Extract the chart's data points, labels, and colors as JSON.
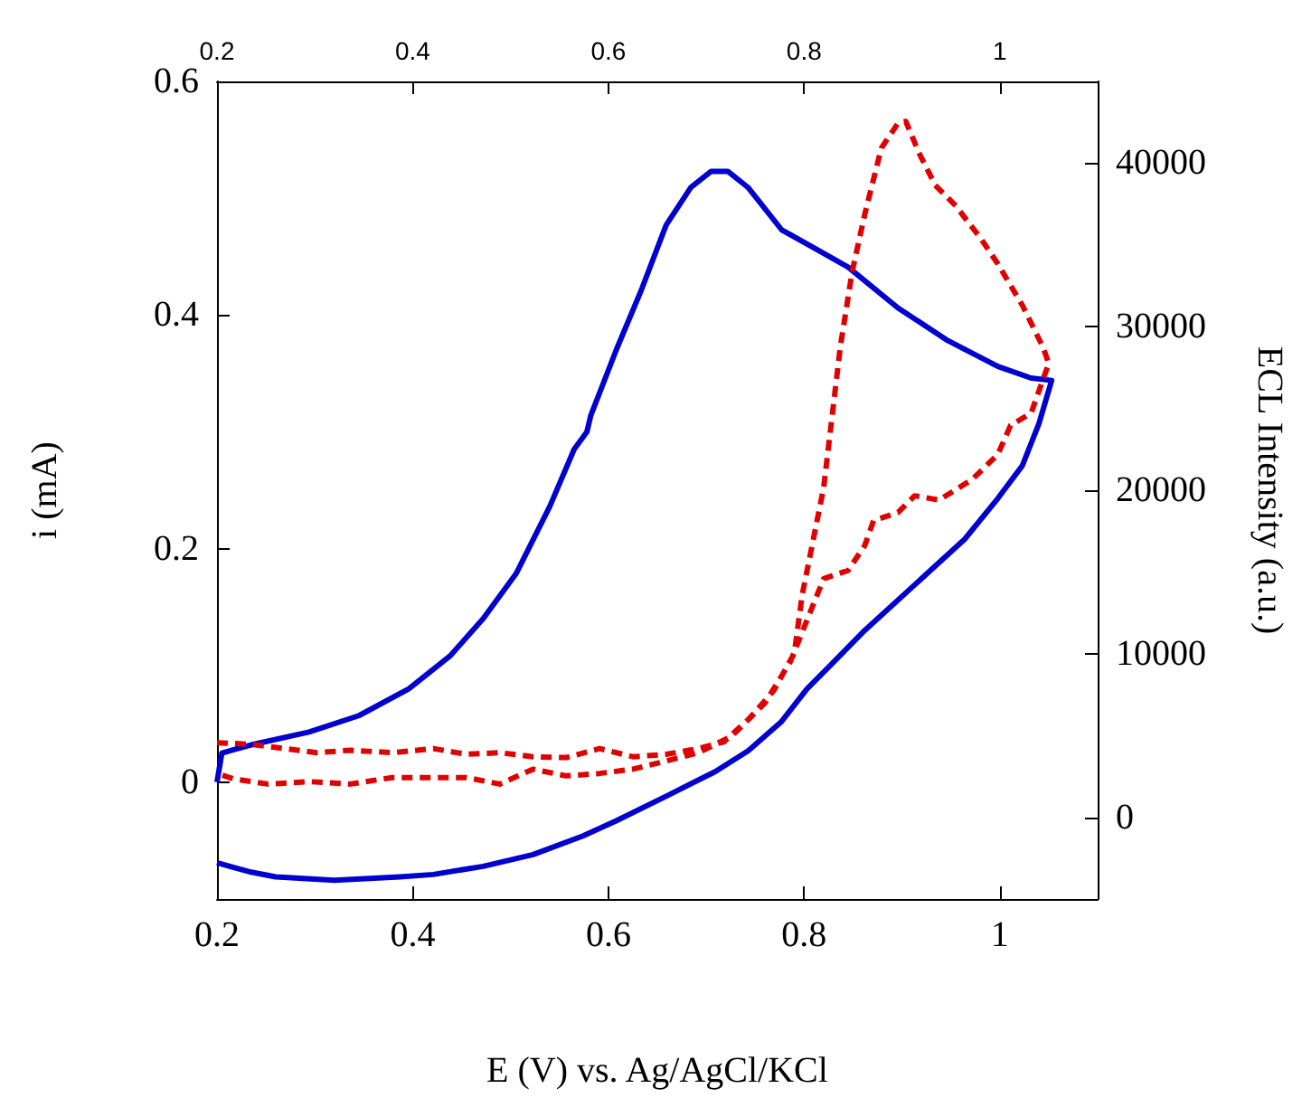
{
  "chart_data": {
    "type": "line",
    "xlabel": "E (V) vs. Ag/AgCl/KCl",
    "ylabel": "i (mA)",
    "y2label": "ECL Intensity (a.u.)",
    "xlim": [
      0.2,
      1.1
    ],
    "xticks": [
      0.2,
      0.4,
      0.6,
      0.8,
      1
    ],
    "x2lim": [
      0.2,
      1.1
    ],
    "x2ticks": [
      0.2,
      0.4,
      0.6,
      0.8,
      1
    ],
    "ylim": [
      -0.1,
      0.6
    ],
    "yticks": [
      0,
      0.2,
      0.4,
      0.6
    ],
    "y2lim": [
      -5000,
      45000
    ],
    "y2ticks": [
      0,
      10000,
      20000,
      30000,
      40000
    ],
    "grid": false,
    "marker": "none",
    "series": [
      {
        "color": "#0000d0",
        "line_style": "solid",
        "x": [
          0.2,
          0.205,
          0.235,
          0.294,
          0.345,
          0.396,
          0.438,
          0.472,
          0.506,
          0.54,
          0.565,
          0.578,
          0.582,
          0.608,
          0.633,
          0.659,
          0.684,
          0.705,
          0.722,
          0.743,
          0.777,
          0.811,
          0.845,
          0.896,
          0.947,
          0.998,
          1.032,
          1.053,
          1.04,
          1.023,
          0.998,
          0.964,
          0.913,
          0.862,
          0.828,
          0.803,
          0.777,
          0.743,
          0.709,
          0.659,
          0.608,
          0.574,
          0.523,
          0.472,
          0.421,
          0.387,
          0.32,
          0.26,
          0.235,
          0.2
        ],
        "values": [
          0,
          0.025,
          0.032,
          0.043,
          0.057,
          0.08,
          0.108,
          0.14,
          0.179,
          0.236,
          0.285,
          0.3,
          0.314,
          0.37,
          0.42,
          0.477,
          0.509,
          0.523,
          0.523,
          0.509,
          0.473,
          0.457,
          0.441,
          0.406,
          0.378,
          0.356,
          0.346,
          0.344,
          0.307,
          0.271,
          0.243,
          0.208,
          0.169,
          0.13,
          0.101,
          0.08,
          0.052,
          0.027,
          0.009,
          -0.012,
          -0.033,
          -0.046,
          -0.062,
          -0.072,
          -0.079,
          -0.081,
          -0.084,
          -0.081,
          -0.077,
          -0.069
        ]
      },
      {
        "color": "#e00000",
        "line_style": "dashed",
        "axis": "y2",
        "x": [
          0.2,
          0.235,
          0.269,
          0.302,
          0.336,
          0.379,
          0.421,
          0.455,
          0.489,
          0.523,
          0.557,
          0.591,
          0.625,
          0.659,
          0.692,
          0.718,
          0.743,
          0.769,
          0.79,
          0.798,
          0.82,
          0.837,
          0.849,
          0.862,
          0.879,
          0.896,
          0.904,
          0.917,
          0.934,
          0.955,
          0.981,
          0.998,
          1.023,
          1.044,
          1.05,
          1.032,
          1.011,
          0.998,
          0.972,
          0.938,
          0.913,
          0.896,
          0.871,
          0.862,
          0.845,
          0.82,
          0.803,
          0.786,
          0.76,
          0.726,
          0.692,
          0.659,
          0.625,
          0.591,
          0.557,
          0.523,
          0.489,
          0.455,
          0.421,
          0.379,
          0.336,
          0.294,
          0.252,
          0.218,
          0.2
        ],
        "values": [
          4560,
          4460,
          4200,
          3950,
          4100,
          3950,
          4200,
          3850,
          3950,
          3700,
          3650,
          4200,
          3700,
          3850,
          4200,
          4610,
          5980,
          7750,
          10030,
          13580,
          20160,
          28770,
          33330,
          36880,
          40930,
          42450,
          42550,
          40680,
          38650,
          37390,
          35360,
          33840,
          31310,
          28770,
          27760,
          24720,
          23960,
          22190,
          20670,
          19400,
          19660,
          18640,
          18140,
          16620,
          15100,
          14590,
          12060,
          9520,
          6990,
          4960,
          3950,
          3440,
          2940,
          2680,
          2530,
          2940,
          2030,
          2430,
          2430,
          2430,
          2030,
          2180,
          2030,
          2330,
          2680
        ]
      }
    ]
  }
}
